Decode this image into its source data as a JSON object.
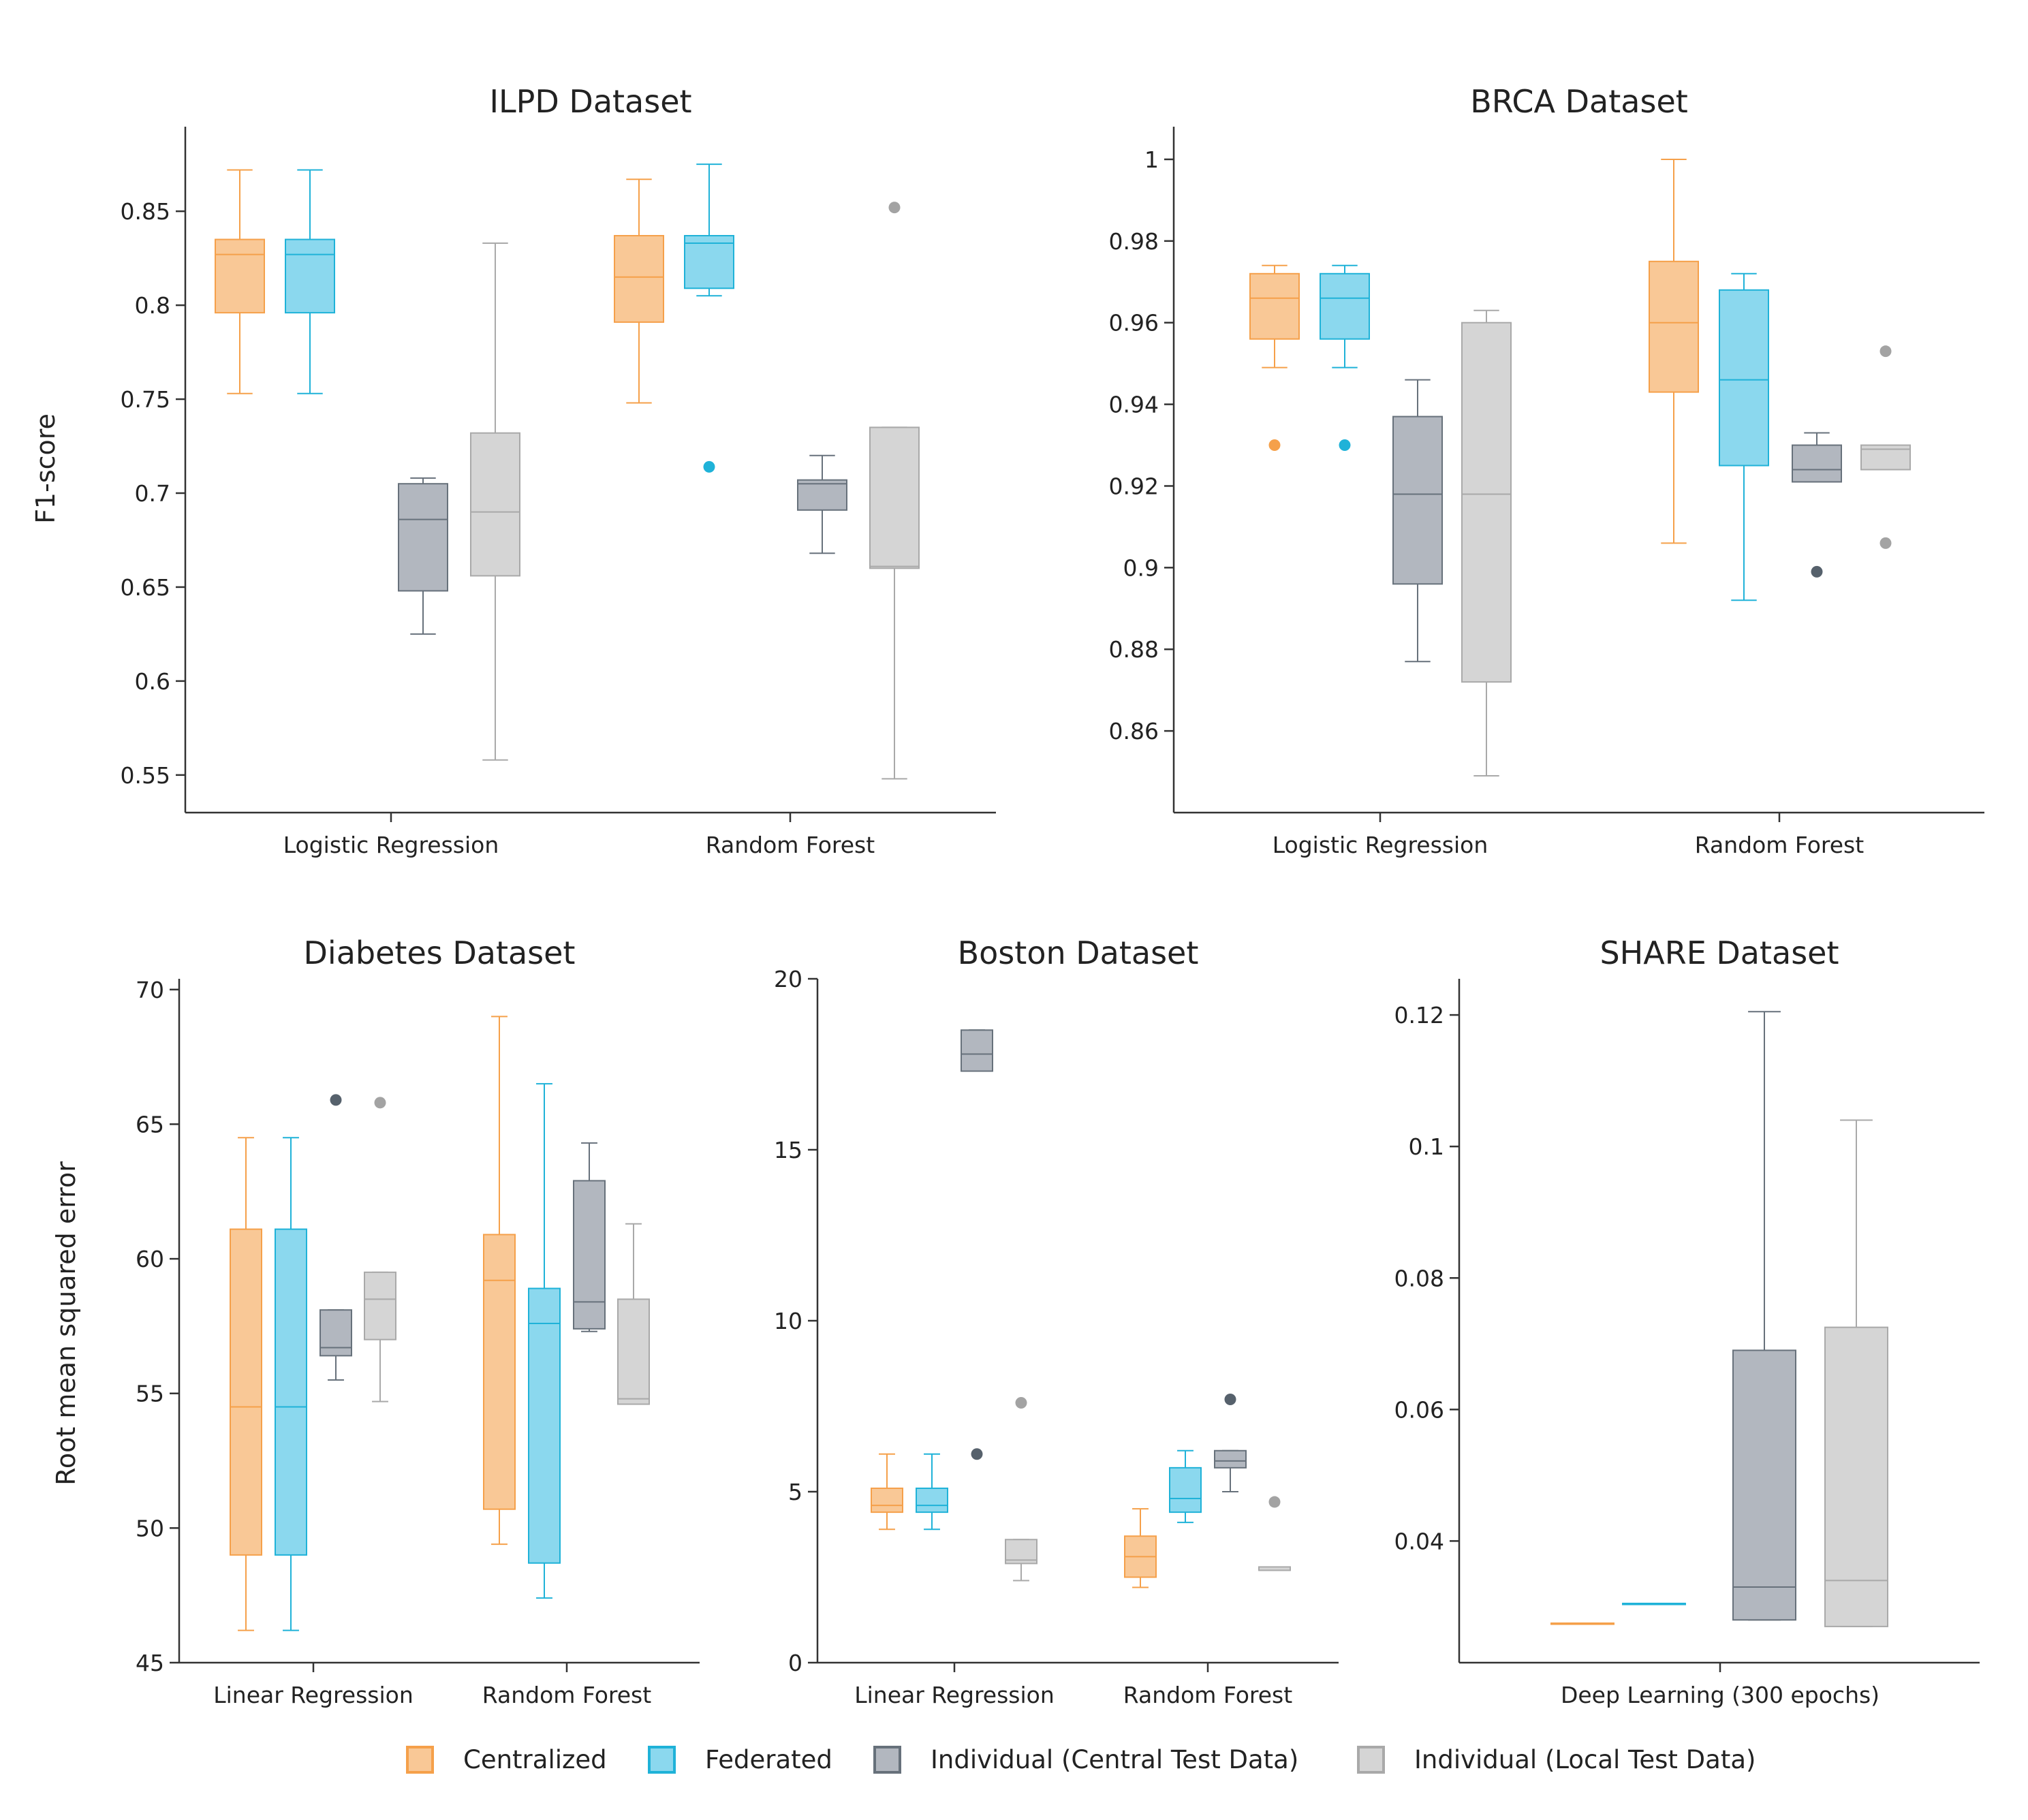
{
  "colors": {
    "Centralized": {
      "stroke": "#f5a04a",
      "fill": "#f9c896"
    },
    "Federated": {
      "stroke": "#1fb2d8",
      "fill": "#8bd8ee"
    },
    "Individual (Central Test Data)": {
      "stroke": "#67717b",
      "fill": "#b2b7bf"
    },
    "Individual (Local Test Data)": {
      "stroke": "#a9a9a9",
      "fill": "#d5d5d5"
    }
  },
  "legend": [
    "Centralized",
    "Federated",
    "Individual (Central Test Data)",
    "Individual (Local Test Data)"
  ],
  "y_labels": {
    "top": "F1-score",
    "bottom": "Root mean squared error"
  },
  "chart_data": [
    {
      "type": "box",
      "title": "ILPD Dataset",
      "ylabel": "F1-score",
      "ylim": [
        0.53,
        0.895
      ],
      "yticks": [
        0.55,
        0.6,
        0.65,
        0.7,
        0.75,
        0.8,
        0.85
      ],
      "ytick_labels": [
        "0.55",
        "0.6",
        "0.65",
        "0.7",
        "0.75",
        "0.8",
        "0.85"
      ],
      "categories": [
        "Logistic Regression",
        "Random Forest"
      ],
      "series": [
        {
          "name": "Centralized",
          "boxes": [
            {
              "min": 0.753,
              "q1": 0.796,
              "median": 0.827,
              "q3": 0.835,
              "max": 0.872,
              "outliers": []
            },
            {
              "min": 0.748,
              "q1": 0.791,
              "median": 0.815,
              "q3": 0.837,
              "max": 0.867,
              "outliers": []
            }
          ]
        },
        {
          "name": "Federated",
          "boxes": [
            {
              "min": 0.753,
              "q1": 0.796,
              "median": 0.827,
              "q3": 0.835,
              "max": 0.872,
              "outliers": []
            },
            {
              "min": 0.805,
              "q1": 0.809,
              "median": 0.833,
              "q3": 0.837,
              "max": 0.875,
              "outliers": [
                0.714
              ]
            }
          ]
        },
        {
          "name": "Individual (Central Test Data)",
          "boxes": [
            {
              "min": 0.625,
              "q1": 0.648,
              "median": 0.686,
              "q3": 0.705,
              "max": 0.708,
              "outliers": []
            },
            {
              "min": 0.668,
              "q1": 0.691,
              "median": 0.705,
              "q3": 0.707,
              "max": 0.72,
              "outliers": []
            }
          ]
        },
        {
          "name": "Individual (Local Test Data)",
          "boxes": [
            {
              "min": 0.558,
              "q1": 0.656,
              "median": 0.69,
              "q3": 0.732,
              "max": 0.833,
              "outliers": []
            },
            {
              "min": 0.548,
              "q1": 0.66,
              "median": 0.661,
              "q3": 0.735,
              "max": 0.735,
              "outliers": [
                0.852
              ]
            }
          ]
        }
      ]
    },
    {
      "type": "box",
      "title": "BRCA Dataset",
      "ylim": [
        0.84,
        1.008
      ],
      "yticks": [
        0.86,
        0.88,
        0.9,
        0.92,
        0.94,
        0.96,
        0.98,
        1.0
      ],
      "ytick_labels": [
        "0.86",
        "0.88",
        "0.9",
        "0.92",
        "0.94",
        "0.96",
        "0.98",
        "1"
      ],
      "categories": [
        "Logistic Regression",
        "Random Forest"
      ],
      "series": [
        {
          "name": "Centralized",
          "boxes": [
            {
              "min": 0.949,
              "q1": 0.956,
              "median": 0.966,
              "q3": 0.972,
              "max": 0.974,
              "outliers": [
                0.93
              ]
            },
            {
              "min": 0.906,
              "q1": 0.943,
              "median": 0.96,
              "q3": 0.975,
              "max": 1.0,
              "outliers": []
            }
          ]
        },
        {
          "name": "Federated",
          "boxes": [
            {
              "min": 0.949,
              "q1": 0.956,
              "median": 0.966,
              "q3": 0.972,
              "max": 0.974,
              "outliers": [
                0.93
              ]
            },
            {
              "min": 0.892,
              "q1": 0.925,
              "median": 0.946,
              "q3": 0.968,
              "max": 0.972,
              "outliers": []
            }
          ]
        },
        {
          "name": "Individual (Central Test Data)",
          "boxes": [
            {
              "min": 0.877,
              "q1": 0.896,
              "median": 0.918,
              "q3": 0.937,
              "max": 0.946,
              "outliers": []
            },
            {
              "min": 0.921,
              "q1": 0.921,
              "median": 0.924,
              "q3": 0.93,
              "max": 0.933,
              "outliers": [
                0.899
              ]
            }
          ]
        },
        {
          "name": "Individual (Local Test Data)",
          "boxes": [
            {
              "min": 0.849,
              "q1": 0.872,
              "median": 0.918,
              "q3": 0.96,
              "max": 0.963,
              "outliers": []
            },
            {
              "min": 0.924,
              "q1": 0.924,
              "median": 0.929,
              "q3": 0.93,
              "max": 0.93,
              "outliers": [
                0.953,
                0.906
              ]
            }
          ]
        }
      ]
    },
    {
      "type": "box",
      "title": "Diabetes Dataset",
      "ylabel": "Root mean squared error",
      "ylim": [
        45,
        70.4
      ],
      "yticks": [
        45,
        50,
        55,
        60,
        65,
        70
      ],
      "ytick_labels": [
        "45",
        "50",
        "55",
        "60",
        "65",
        "70"
      ],
      "categories": [
        "Linear Regression",
        "Random Forest"
      ],
      "series": [
        {
          "name": "Centralized",
          "boxes": [
            {
              "min": 46.2,
              "q1": 49.0,
              "median": 54.5,
              "q3": 61.1,
              "max": 64.5,
              "outliers": []
            },
            {
              "min": 49.4,
              "q1": 50.7,
              "median": 59.2,
              "q3": 60.9,
              "max": 69.0,
              "outliers": []
            }
          ]
        },
        {
          "name": "Federated",
          "boxes": [
            {
              "min": 46.2,
              "q1": 49.0,
              "median": 54.5,
              "q3": 61.1,
              "max": 64.5,
              "outliers": []
            },
            {
              "min": 47.4,
              "q1": 48.7,
              "median": 57.6,
              "q3": 58.9,
              "max": 66.5,
              "outliers": []
            }
          ]
        },
        {
          "name": "Individual (Central Test Data)",
          "boxes": [
            {
              "min": 55.5,
              "q1": 56.4,
              "median": 56.7,
              "q3": 58.1,
              "max": 58.1,
              "outliers": [
                65.9
              ]
            },
            {
              "min": 57.3,
              "q1": 57.4,
              "median": 58.4,
              "q3": 62.9,
              "max": 64.3,
              "outliers": []
            }
          ]
        },
        {
          "name": "Individual (Local Test Data)",
          "boxes": [
            {
              "min": 54.7,
              "q1": 57.0,
              "median": 58.5,
              "q3": 59.5,
              "max": 59.5,
              "outliers": [
                65.8
              ]
            },
            {
              "min": 54.6,
              "q1": 54.6,
              "median": 54.8,
              "q3": 58.5,
              "max": 61.3,
              "outliers": []
            }
          ]
        }
      ]
    },
    {
      "type": "box",
      "title": "Boston Dataset",
      "ylim": [
        0,
        20
      ],
      "yticks": [
        0,
        5,
        10,
        15,
        20
      ],
      "ytick_labels": [
        "0",
        "5",
        "10",
        "15",
        "20"
      ],
      "categories": [
        "Linear Regression",
        "Random Forest"
      ],
      "series": [
        {
          "name": "Centralized",
          "boxes": [
            {
              "min": 3.9,
              "q1": 4.4,
              "median": 4.6,
              "q3": 5.1,
              "max": 6.1,
              "outliers": []
            },
            {
              "min": 2.2,
              "q1": 2.5,
              "median": 3.1,
              "q3": 3.7,
              "max": 4.5,
              "outliers": []
            }
          ]
        },
        {
          "name": "Federated",
          "boxes": [
            {
              "min": 3.9,
              "q1": 4.4,
              "median": 4.6,
              "q3": 5.1,
              "max": 6.1,
              "outliers": []
            },
            {
              "min": 4.1,
              "q1": 4.4,
              "median": 4.8,
              "q3": 5.7,
              "max": 6.2,
              "outliers": []
            }
          ]
        },
        {
          "name": "Individual (Central Test Data)",
          "boxes": [
            {
              "min": 17.3,
              "q1": 17.3,
              "median": 17.8,
              "q3": 18.5,
              "max": 18.5,
              "outliers": [
                6.1
              ]
            },
            {
              "min": 5.0,
              "q1": 5.7,
              "median": 5.9,
              "q3": 6.2,
              "max": 6.2,
              "outliers": [
                7.7
              ]
            }
          ]
        },
        {
          "name": "Individual (Local Test Data)",
          "boxes": [
            {
              "min": 2.4,
              "q1": 2.9,
              "median": 3.0,
              "q3": 3.6,
              "max": 3.6,
              "outliers": [
                7.6
              ]
            },
            {
              "min": 2.7,
              "q1": 2.7,
              "median": 2.7,
              "q3": 2.8,
              "max": 2.8,
              "outliers": [
                4.7
              ]
            }
          ]
        }
      ]
    },
    {
      "type": "box",
      "title": "SHARE Dataset",
      "ylim": [
        0.0215,
        0.1255
      ],
      "yticks": [
        0.04,
        0.06,
        0.08,
        0.1,
        0.12
      ],
      "ytick_labels": [
        "0.04",
        "0.06",
        "0.08",
        "0.1",
        "0.12"
      ],
      "categories": [
        "Deep Learning (300 epochs)"
      ],
      "series": [
        {
          "name": "Centralized",
          "boxes": [
            {
              "min": 0.0275,
              "q1": 0.0275,
              "median": 0.0275,
              "q3": 0.0275,
              "max": 0.0275,
              "outliers": []
            }
          ]
        },
        {
          "name": "Federated",
          "boxes": [
            {
              "min": 0.0305,
              "q1": 0.0305,
              "median": 0.0305,
              "q3": 0.0305,
              "max": 0.0305,
              "outliers": []
            }
          ]
        },
        {
          "name": "Individual (Central Test Data)",
          "boxes": [
            {
              "min": 0.028,
              "q1": 0.028,
              "median": 0.033,
              "q3": 0.069,
              "max": 0.1205,
              "outliers": []
            }
          ]
        },
        {
          "name": "Individual (Local Test Data)",
          "boxes": [
            {
              "min": 0.027,
              "q1": 0.027,
              "median": 0.034,
              "q3": 0.0725,
              "max": 0.104,
              "outliers": []
            }
          ]
        }
      ]
    }
  ]
}
